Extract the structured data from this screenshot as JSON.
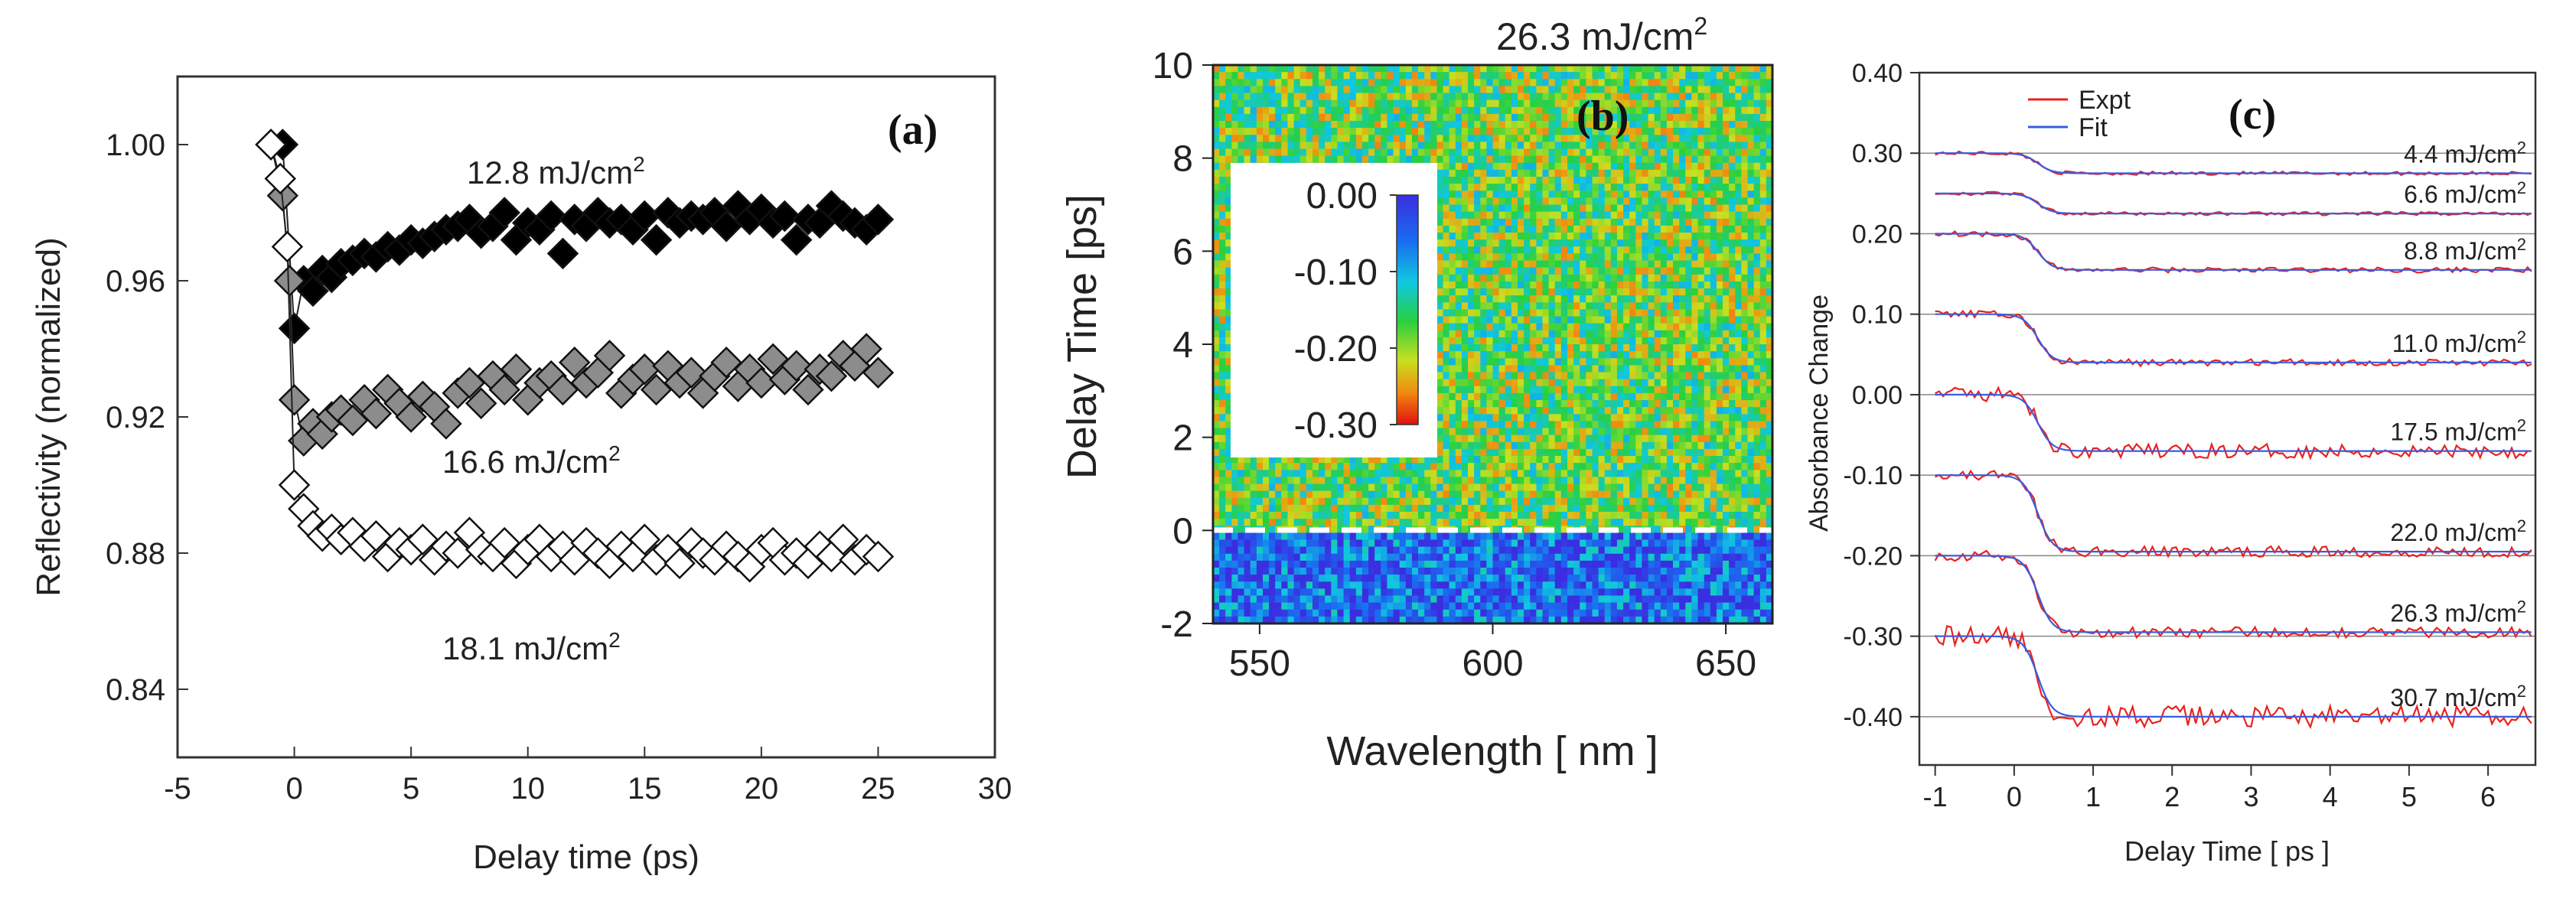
{
  "figure": "three-panel ultrafast spectroscopy figure",
  "chart_data": [
    {
      "panel": "(a)",
      "type": "scatter",
      "xlabel": "Delay time (ps)",
      "ylabel": "Reflectivity (normalized)",
      "xlim": [
        -5,
        30
      ],
      "ylim": [
        0.82,
        1.02
      ],
      "xticks": [
        "-5",
        "0",
        "5",
        "10",
        "15",
        "20",
        "25",
        "30"
      ],
      "yticks": [
        "0.84",
        "0.88",
        "0.92",
        "0.96",
        "1.00"
      ],
      "legend": "none",
      "series": [
        {
          "name": "12.8 mJ/cm²",
          "label_main": "12.8 mJ/cm",
          "label_sup": "2",
          "fill": "#000000",
          "x": [
            -1,
            -0.5,
            0,
            0.4,
            0.8,
            1.2,
            1.6,
            2,
            2.5,
            3,
            3.5,
            4,
            4.5,
            5,
            5.5,
            6,
            6.5,
            7,
            7.5,
            8,
            8.5,
            9,
            9.5,
            10,
            10.5,
            11,
            11.5,
            12,
            12.5,
            13,
            13.5,
            14,
            14.5,
            15,
            15.5,
            16,
            16.5,
            17,
            17.5,
            18,
            18.5,
            19,
            19.5,
            20,
            20.5,
            21,
            21.5,
            22,
            22.5,
            23,
            23.5,
            24,
            24.5,
            25
          ],
          "y": [
            1.0,
            1.0,
            0.946,
            0.96,
            0.957,
            0.963,
            0.961,
            0.965,
            0.966,
            0.968,
            0.967,
            0.97,
            0.969,
            0.972,
            0.971,
            0.973,
            0.975,
            0.976,
            0.978,
            0.974,
            0.976,
            0.98,
            0.972,
            0.977,
            0.975,
            0.979,
            0.968,
            0.978,
            0.976,
            0.98,
            0.977,
            0.978,
            0.975,
            0.979,
            0.972,
            0.98,
            0.977,
            0.979,
            0.978,
            0.98,
            0.976,
            0.982,
            0.978,
            0.981,
            0.977,
            0.979,
            0.972,
            0.978,
            0.977,
            0.982,
            0.979,
            0.977,
            0.975,
            0.978
          ]
        },
        {
          "name": "16.6 mJ/cm²",
          "label_main": "16.6 mJ/cm",
          "label_sup": "2",
          "fill": "#8c8c8c",
          "x": [
            -1,
            -0.5,
            -0.2,
            0,
            0.4,
            0.8,
            1.2,
            1.6,
            2,
            2.5,
            3,
            3.5,
            4,
            4.5,
            5,
            5.5,
            6,
            6.5,
            7,
            7.5,
            8,
            8.5,
            9,
            9.5,
            10,
            10.5,
            11,
            11.5,
            12,
            12.5,
            13,
            13.5,
            14,
            14.5,
            15,
            15.5,
            16,
            16.5,
            17,
            17.5,
            18,
            18.5,
            19,
            19.5,
            20,
            20.5,
            21,
            21.5,
            22,
            22.5,
            23,
            23.5,
            24,
            24.5,
            25
          ],
          "y": [
            1.0,
            0.985,
            0.96,
            0.925,
            0.913,
            0.918,
            0.915,
            0.92,
            0.922,
            0.919,
            0.925,
            0.921,
            0.928,
            0.924,
            0.92,
            0.926,
            0.923,
            0.918,
            0.927,
            0.93,
            0.924,
            0.932,
            0.928,
            0.934,
            0.925,
            0.93,
            0.932,
            0.928,
            0.936,
            0.93,
            0.933,
            0.938,
            0.927,
            0.931,
            0.934,
            0.928,
            0.935,
            0.93,
            0.933,
            0.927,
            0.932,
            0.936,
            0.929,
            0.934,
            0.93,
            0.937,
            0.931,
            0.935,
            0.928,
            0.934,
            0.932,
            0.938,
            0.935,
            0.94,
            0.933
          ]
        },
        {
          "name": "18.1 mJ/cm²",
          "label_main": "18.1 mJ/cm",
          "label_sup": "2",
          "fill": "#ffffff",
          "x": [
            -1,
            -0.6,
            -0.3,
            0,
            0.4,
            0.8,
            1.2,
            1.6,
            2,
            2.5,
            3,
            3.5,
            4,
            4.5,
            5,
            5.5,
            6,
            6.5,
            7,
            7.5,
            8,
            8.5,
            9,
            9.5,
            10,
            10.5,
            11,
            11.5,
            12,
            12.5,
            13,
            13.5,
            14,
            14.5,
            15,
            15.5,
            16,
            16.5,
            17,
            17.5,
            18,
            18.5,
            19,
            19.5,
            20,
            20.5,
            21,
            21.5,
            22,
            22.5,
            23,
            23.5,
            24,
            24.5,
            25
          ],
          "y": [
            1.0,
            0.99,
            0.97,
            0.9,
            0.893,
            0.888,
            0.885,
            0.887,
            0.884,
            0.886,
            0.882,
            0.885,
            0.879,
            0.883,
            0.881,
            0.884,
            0.878,
            0.882,
            0.88,
            0.886,
            0.881,
            0.879,
            0.883,
            0.877,
            0.881,
            0.884,
            0.879,
            0.882,
            0.878,
            0.883,
            0.88,
            0.877,
            0.882,
            0.879,
            0.884,
            0.878,
            0.881,
            0.877,
            0.883,
            0.88,
            0.878,
            0.882,
            0.879,
            0.876,
            0.881,
            0.883,
            0.878,
            0.88,
            0.877,
            0.882,
            0.879,
            0.884,
            0.878,
            0.881,
            0.879
          ]
        }
      ]
    },
    {
      "panel": "(b)",
      "type": "heatmap",
      "title": "26.3 mJ/cm",
      "title_sup": "2",
      "xlabel": "Wavelength  [ nm ]",
      "ylabel": "Delay  Time  [ps]",
      "xlim": [
        540,
        660
      ],
      "ylim": [
        -2,
        10
      ],
      "xticks": [
        "550",
        "600",
        "650"
      ],
      "yticks": [
        "-2",
        "0",
        "2",
        "4",
        "6",
        "8",
        "10"
      ],
      "colorbar": {
        "min": -0.3,
        "max": 0.0,
        "ticks": [
          "0.00",
          "-0.10",
          "-0.20",
          "-0.30"
        ]
      },
      "description_values": {
        "before_zero": -0.05,
        "after_zero": -0.18,
        "zero_line_ps": 0
      }
    },
    {
      "panel": "(c)",
      "type": "line",
      "xlabel": "Delay  Time [ ps ]",
      "ylabel": "Absorbance  Change",
      "xlim": [
        -1.2,
        6.6
      ],
      "ylim": [
        -0.46,
        0.4
      ],
      "xticks": [
        "-1",
        "0",
        "1",
        "2",
        "3",
        "4",
        "5",
        "6"
      ],
      "yticks": [
        "0.40",
        "0.30",
        "0.20",
        "0.10",
        "0.00",
        "-0.10",
        "-0.20",
        "-0.30",
        "-0.40"
      ],
      "legend": "top-left",
      "legend_entries": [
        {
          "name": "Expt",
          "color": "#e8231d"
        },
        {
          "name": "Fit",
          "color": "#3a5ce0"
        }
      ],
      "series": [
        {
          "name": "4.4 mJ/cm²",
          "label_main": "4.4 mJ/cm",
          "label_sup": "2",
          "start": 0.3,
          "end": 0.275,
          "noise": 0.002
        },
        {
          "name": "6.6 mJ/cm²",
          "label_main": "6.6 mJ/cm",
          "label_sup": "2",
          "start": 0.25,
          "end": 0.225,
          "noise": 0.002
        },
        {
          "name": "8.8 mJ/cm²",
          "label_main": "8.8 mJ/cm",
          "label_sup": "2",
          "start": 0.2,
          "end": 0.155,
          "noise": 0.003
        },
        {
          "name": "11.0 mJ/cm²",
          "label_main": "11.0 mJ/cm",
          "label_sup": "2",
          "start": 0.1,
          "end": 0.04,
          "noise": 0.004
        },
        {
          "name": "17.5 mJ/cm²",
          "label_main": "17.5 mJ/cm",
          "label_sup": "2",
          "start": 0.0,
          "end": -0.07,
          "noise": 0.008
        },
        {
          "name": "22.0 mJ/cm²",
          "label_main": "22.0 mJ/cm",
          "label_sup": "2",
          "start": -0.1,
          "end": -0.195,
          "noise": 0.006
        },
        {
          "name": "26.3 mJ/cm²",
          "label_main": "26.3 mJ/cm",
          "label_sup": "2",
          "start": -0.2,
          "end": -0.295,
          "noise": 0.006
        },
        {
          "name": "30.7 mJ/cm²",
          "label_main": "30.7 mJ/cm",
          "label_sup": "2",
          "start": -0.3,
          "end": -0.4,
          "noise": 0.012
        }
      ]
    }
  ]
}
